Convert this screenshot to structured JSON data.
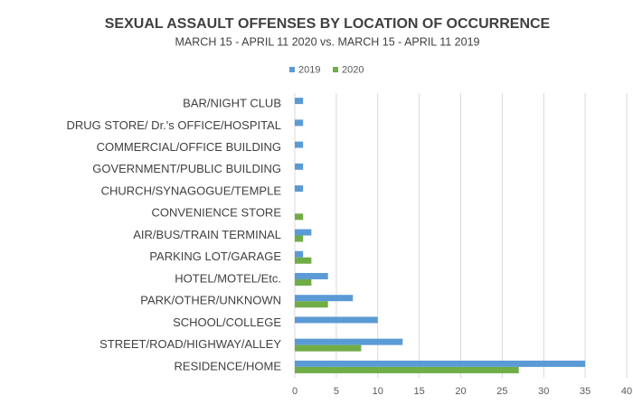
{
  "chart_data": {
    "type": "barh",
    "title": "SEXUAL ASSAULT OFFENSES BY LOCATION OF OCCURRENCE",
    "subtitle": "MARCH 15 - APRIL 11 2020 vs. MARCH 15 - APRIL 11 2019",
    "categories": [
      "BAR/NIGHT CLUB",
      "DRUG STORE/ Dr.'s OFFICE/HOSPITAL",
      "COMMERCIAL/OFFICE BUILDING",
      "GOVERNMENT/PUBLIC BUILDING",
      "CHURCH/SYNAGOGUE/TEMPLE",
      "CONVENIENCE STORE",
      "AIR/BUS/TRAIN TERMINAL",
      "PARKING LOT/GARAGE",
      "HOTEL/MOTEL/Etc.",
      "PARK/OTHER/UNKNOWN",
      "SCHOOL/COLLEGE",
      "STREET/ROAD/HIGHWAY/ALLEY",
      "RESIDENCE/HOME"
    ],
    "series": [
      {
        "name": "2019",
        "color": "#5b9bd5",
        "values": [
          1,
          1,
          1,
          1,
          1,
          0,
          2,
          1,
          4,
          7,
          10,
          13,
          35
        ]
      },
      {
        "name": "2020",
        "color": "#70ad47",
        "values": [
          0,
          0,
          0,
          0,
          0,
          1,
          1,
          2,
          2,
          4,
          0,
          8,
          27
        ]
      }
    ],
    "xlim": [
      0,
      40
    ],
    "xticks": [
      0,
      5,
      10,
      15,
      20,
      25,
      30,
      35,
      40
    ],
    "grid": true,
    "legend": "top"
  }
}
